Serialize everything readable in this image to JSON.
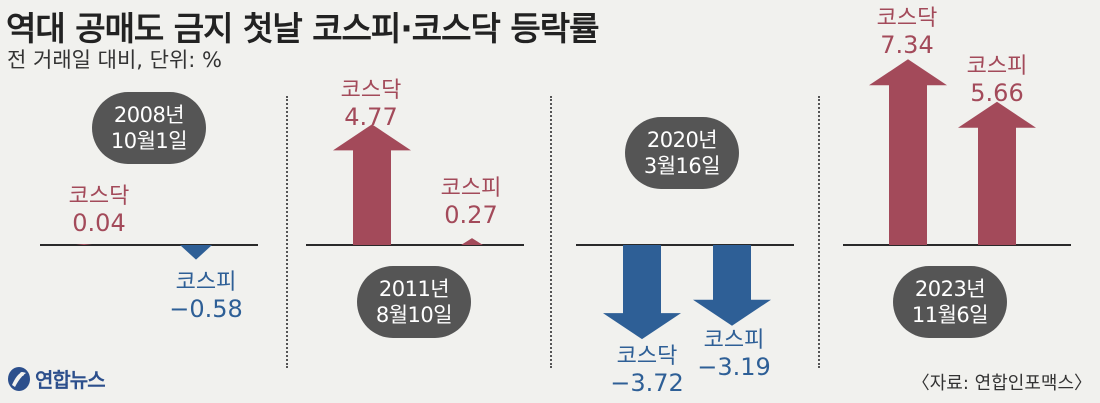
{
  "title": "역대 공매도 금지 첫날 코스피·코스닥 등락률",
  "subtitle": "전 거래일 대비, 단위: %",
  "source": "〈자료: 연합인포맥스〉",
  "logo": {
    "text": "연합뉴스",
    "icon": "yonhap-globe-icon"
  },
  "colors": {
    "up": "#a34a5a",
    "down": "#2e5f96",
    "pill": "#555555"
  },
  "chart_data": {
    "type": "bar",
    "categories": [
      "2008년 10월1일",
      "2011년 8월10일",
      "2020년 3월16일",
      "2023년 11월6일"
    ],
    "series": [
      {
        "name": "코스닥",
        "values": [
          0.04,
          4.77,
          -3.72,
          7.34
        ]
      },
      {
        "name": "코스피",
        "values": [
          -0.58,
          0.27,
          -3.19,
          5.66
        ]
      }
    ],
    "panels": [
      {
        "date_line1": "2008년",
        "date_line2": "10월1일",
        "bars": [
          {
            "name": "코스닥",
            "value": 0.04,
            "value_label": "0.04"
          },
          {
            "name": "코스피",
            "value": -0.58,
            "value_label": "−0.58"
          }
        ]
      },
      {
        "date_line1": "2011년",
        "date_line2": "8월10일",
        "bars": [
          {
            "name": "코스닥",
            "value": 4.77,
            "value_label": "4.77"
          },
          {
            "name": "코스피",
            "value": 0.27,
            "value_label": "0.27"
          }
        ]
      },
      {
        "date_line1": "2020년",
        "date_line2": "3월16일",
        "bars": [
          {
            "name": "코스닥",
            "value": -3.72,
            "value_label": "−3.72"
          },
          {
            "name": "코스피",
            "value": -3.19,
            "value_label": "−3.19"
          }
        ]
      },
      {
        "date_line1": "2023년",
        "date_line2": "11월6일",
        "bars": [
          {
            "name": "코스닥",
            "value": 7.34,
            "value_label": "7.34"
          },
          {
            "name": "코스피",
            "value": 5.66,
            "value_label": "5.66"
          }
        ]
      }
    ]
  }
}
